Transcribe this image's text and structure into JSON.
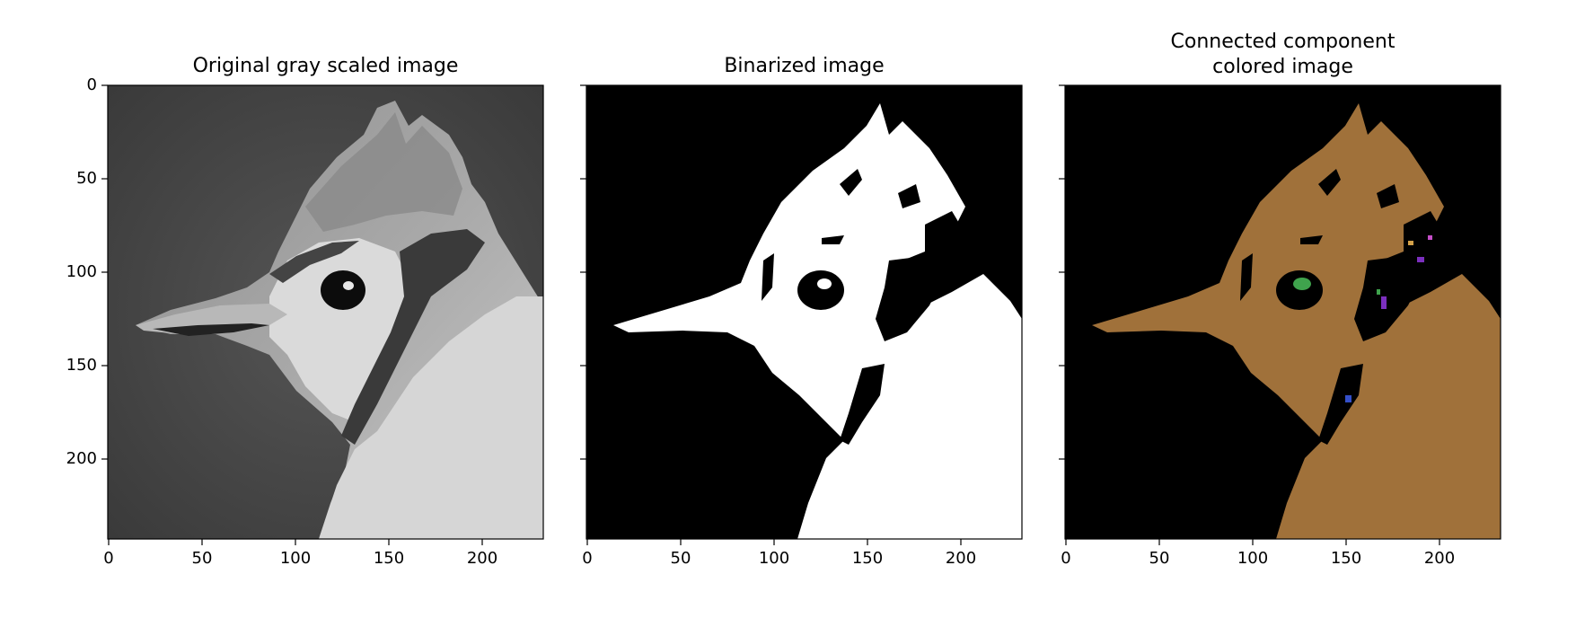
{
  "panels": [
    {
      "title": "Original gray scaled image",
      "x_ticks": [
        "0",
        "50",
        "100",
        "150",
        "200"
      ],
      "y_ticks": [
        "0",
        "50",
        "100",
        "150",
        "200"
      ],
      "colors": {
        "background": "#4a4a4a",
        "subject": "#9a9a9a",
        "dark": "#2f2f2f",
        "light": "#d9d9d9"
      }
    },
    {
      "title": "Binarized image",
      "x_ticks": [
        "0",
        "50",
        "100",
        "150",
        "200"
      ],
      "colors": {
        "background": "#000000",
        "subject": "#ffffff"
      }
    },
    {
      "title": "Connected component\ncolored image",
      "x_ticks": [
        "0",
        "50",
        "100",
        "150",
        "200"
      ],
      "colors": {
        "background": "#000000",
        "subject": "#a0713a",
        "eye": "#3fa34d",
        "spot1": "#7b2fbe",
        "spot2": "#3550c9"
      }
    }
  ]
}
